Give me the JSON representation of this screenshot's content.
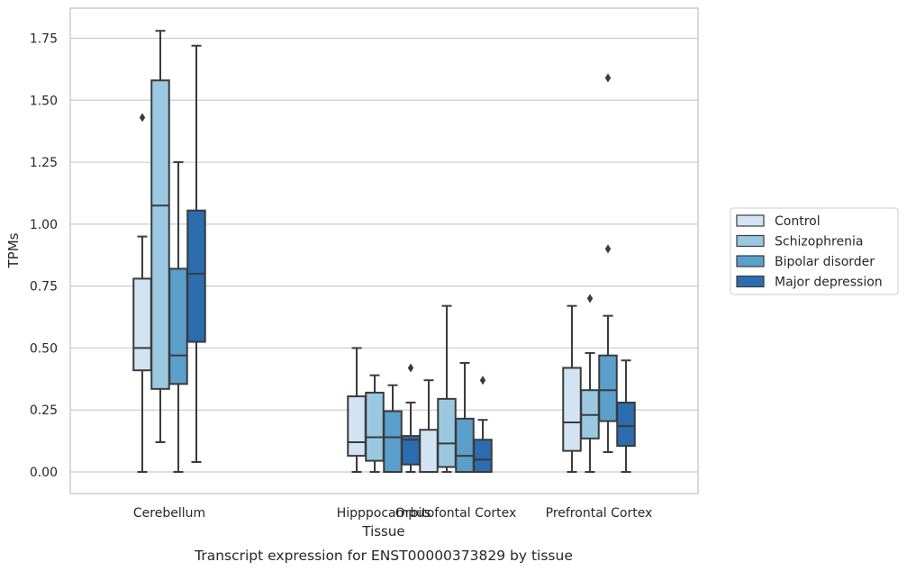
{
  "chart_data": {
    "type": "box",
    "xlabel": "Tissue",
    "ylabel": "TPMs",
    "caption": "Transcript expression for ENST00000373829 by tissue",
    "ylim": [
      -0.08,
      1.87
    ],
    "yticks": [
      0.0,
      0.25,
      0.5,
      0.75,
      1.0,
      1.25,
      1.5,
      1.75
    ],
    "ytick_labels": [
      "0.00",
      "0.25",
      "0.50",
      "0.75",
      "1.00",
      "1.25",
      "1.50",
      "1.75"
    ],
    "grid": true,
    "legend_position": "right-center",
    "categories": [
      "Cerebellum",
      "Hipppocampus",
      "Orbitofontal Cortex",
      "Prefrontal Cortex"
    ],
    "series": [
      {
        "name": "Control",
        "color": "#d2e3f3",
        "boxes": [
          {
            "whisker_low": 0.0,
            "q1": 0.41,
            "median": 0.5,
            "q3": 0.78,
            "whisker_high": 0.95,
            "outliers": [
              1.43
            ]
          },
          {
            "whisker_low": 0.0,
            "q1": 0.065,
            "median": 0.12,
            "q3": 0.305,
            "whisker_high": 0.5,
            "outliers": []
          },
          {
            "whisker_low": 0.0,
            "q1": 0.0,
            "median": 0.0,
            "q3": 0.17,
            "whisker_high": 0.37,
            "outliers": []
          },
          {
            "whisker_low": 0.0,
            "q1": 0.085,
            "median": 0.2,
            "q3": 0.42,
            "whisker_high": 0.67,
            "outliers": []
          }
        ]
      },
      {
        "name": "Schizophrenia",
        "color": "#9ac8e0",
        "boxes": [
          {
            "whisker_low": 0.12,
            "q1": 0.335,
            "median": 1.075,
            "q3": 1.58,
            "whisker_high": 1.78,
            "outliers": []
          },
          {
            "whisker_low": 0.0,
            "q1": 0.045,
            "median": 0.14,
            "q3": 0.32,
            "whisker_high": 0.39,
            "outliers": []
          },
          {
            "whisker_low": 0.0,
            "q1": 0.02,
            "median": 0.115,
            "q3": 0.295,
            "whisker_high": 0.67,
            "outliers": []
          },
          {
            "whisker_low": 0.0,
            "q1": 0.135,
            "median": 0.23,
            "q3": 0.33,
            "whisker_high": 0.48,
            "outliers": [
              0.7
            ]
          }
        ]
      },
      {
        "name": "Bipolar disorder",
        "color": "#5b9fcb",
        "boxes": [
          {
            "whisker_low": 0.0,
            "q1": 0.355,
            "median": 0.47,
            "q3": 0.82,
            "whisker_high": 1.25,
            "outliers": []
          },
          {
            "whisker_low": 0.0,
            "q1": 0.0,
            "median": 0.14,
            "q3": 0.245,
            "whisker_high": 0.35,
            "outliers": []
          },
          {
            "whisker_low": 0.0,
            "q1": 0.0,
            "median": 0.065,
            "q3": 0.215,
            "whisker_high": 0.44,
            "outliers": []
          },
          {
            "whisker_low": 0.08,
            "q1": 0.205,
            "median": 0.33,
            "q3": 0.47,
            "whisker_high": 0.63,
            "outliers": [
              0.9,
              1.59
            ]
          }
        ]
      },
      {
        "name": "Major depression",
        "color": "#2b6daf",
        "boxes": [
          {
            "whisker_low": 0.04,
            "q1": 0.525,
            "median": 0.8,
            "q3": 1.055,
            "whisker_high": 1.72,
            "outliers": []
          },
          {
            "whisker_low": 0.0,
            "q1": 0.03,
            "median": 0.13,
            "q3": 0.145,
            "whisker_high": 0.28,
            "outliers": [
              0.42
            ]
          },
          {
            "whisker_low": 0.0,
            "q1": 0.0,
            "median": 0.05,
            "q3": 0.13,
            "whisker_high": 0.21,
            "outliers": [
              0.37
            ]
          },
          {
            "whisker_low": 0.0,
            "q1": 0.105,
            "median": 0.185,
            "q3": 0.28,
            "whisker_high": 0.45,
            "outliers": []
          }
        ]
      }
    ]
  }
}
